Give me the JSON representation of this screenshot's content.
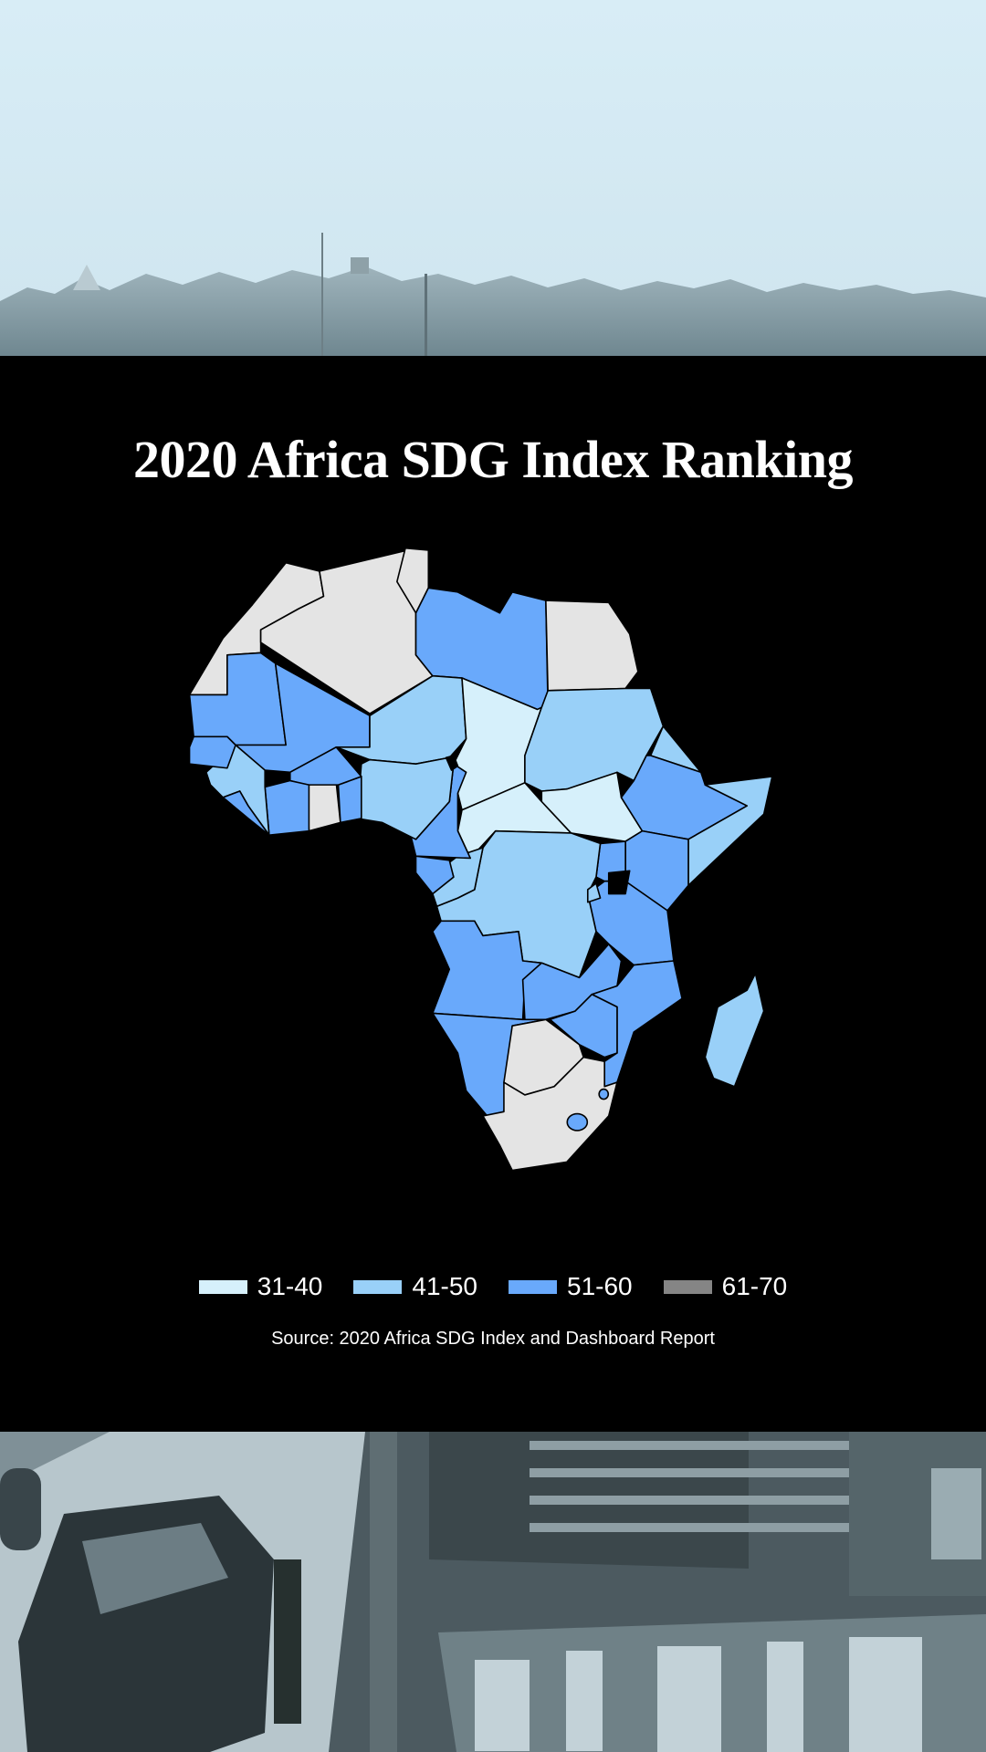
{
  "title": "2020 Africa SDG Index Ranking",
  "source": "Source: 2020 Africa SDG Index and Dashboard Report",
  "chart_data": {
    "type": "choropleth",
    "title": "2020 Africa SDG Index Ranking",
    "legend_position": "bottom",
    "bins": [
      {
        "label": "31-40",
        "color": "#d6f0fb"
      },
      {
        "label": "41-50",
        "color": "#99d0f8"
      },
      {
        "label": "51-60",
        "color": "#69a9fb"
      },
      {
        "label": "61-70",
        "color": "#858585"
      }
    ]
  }
}
